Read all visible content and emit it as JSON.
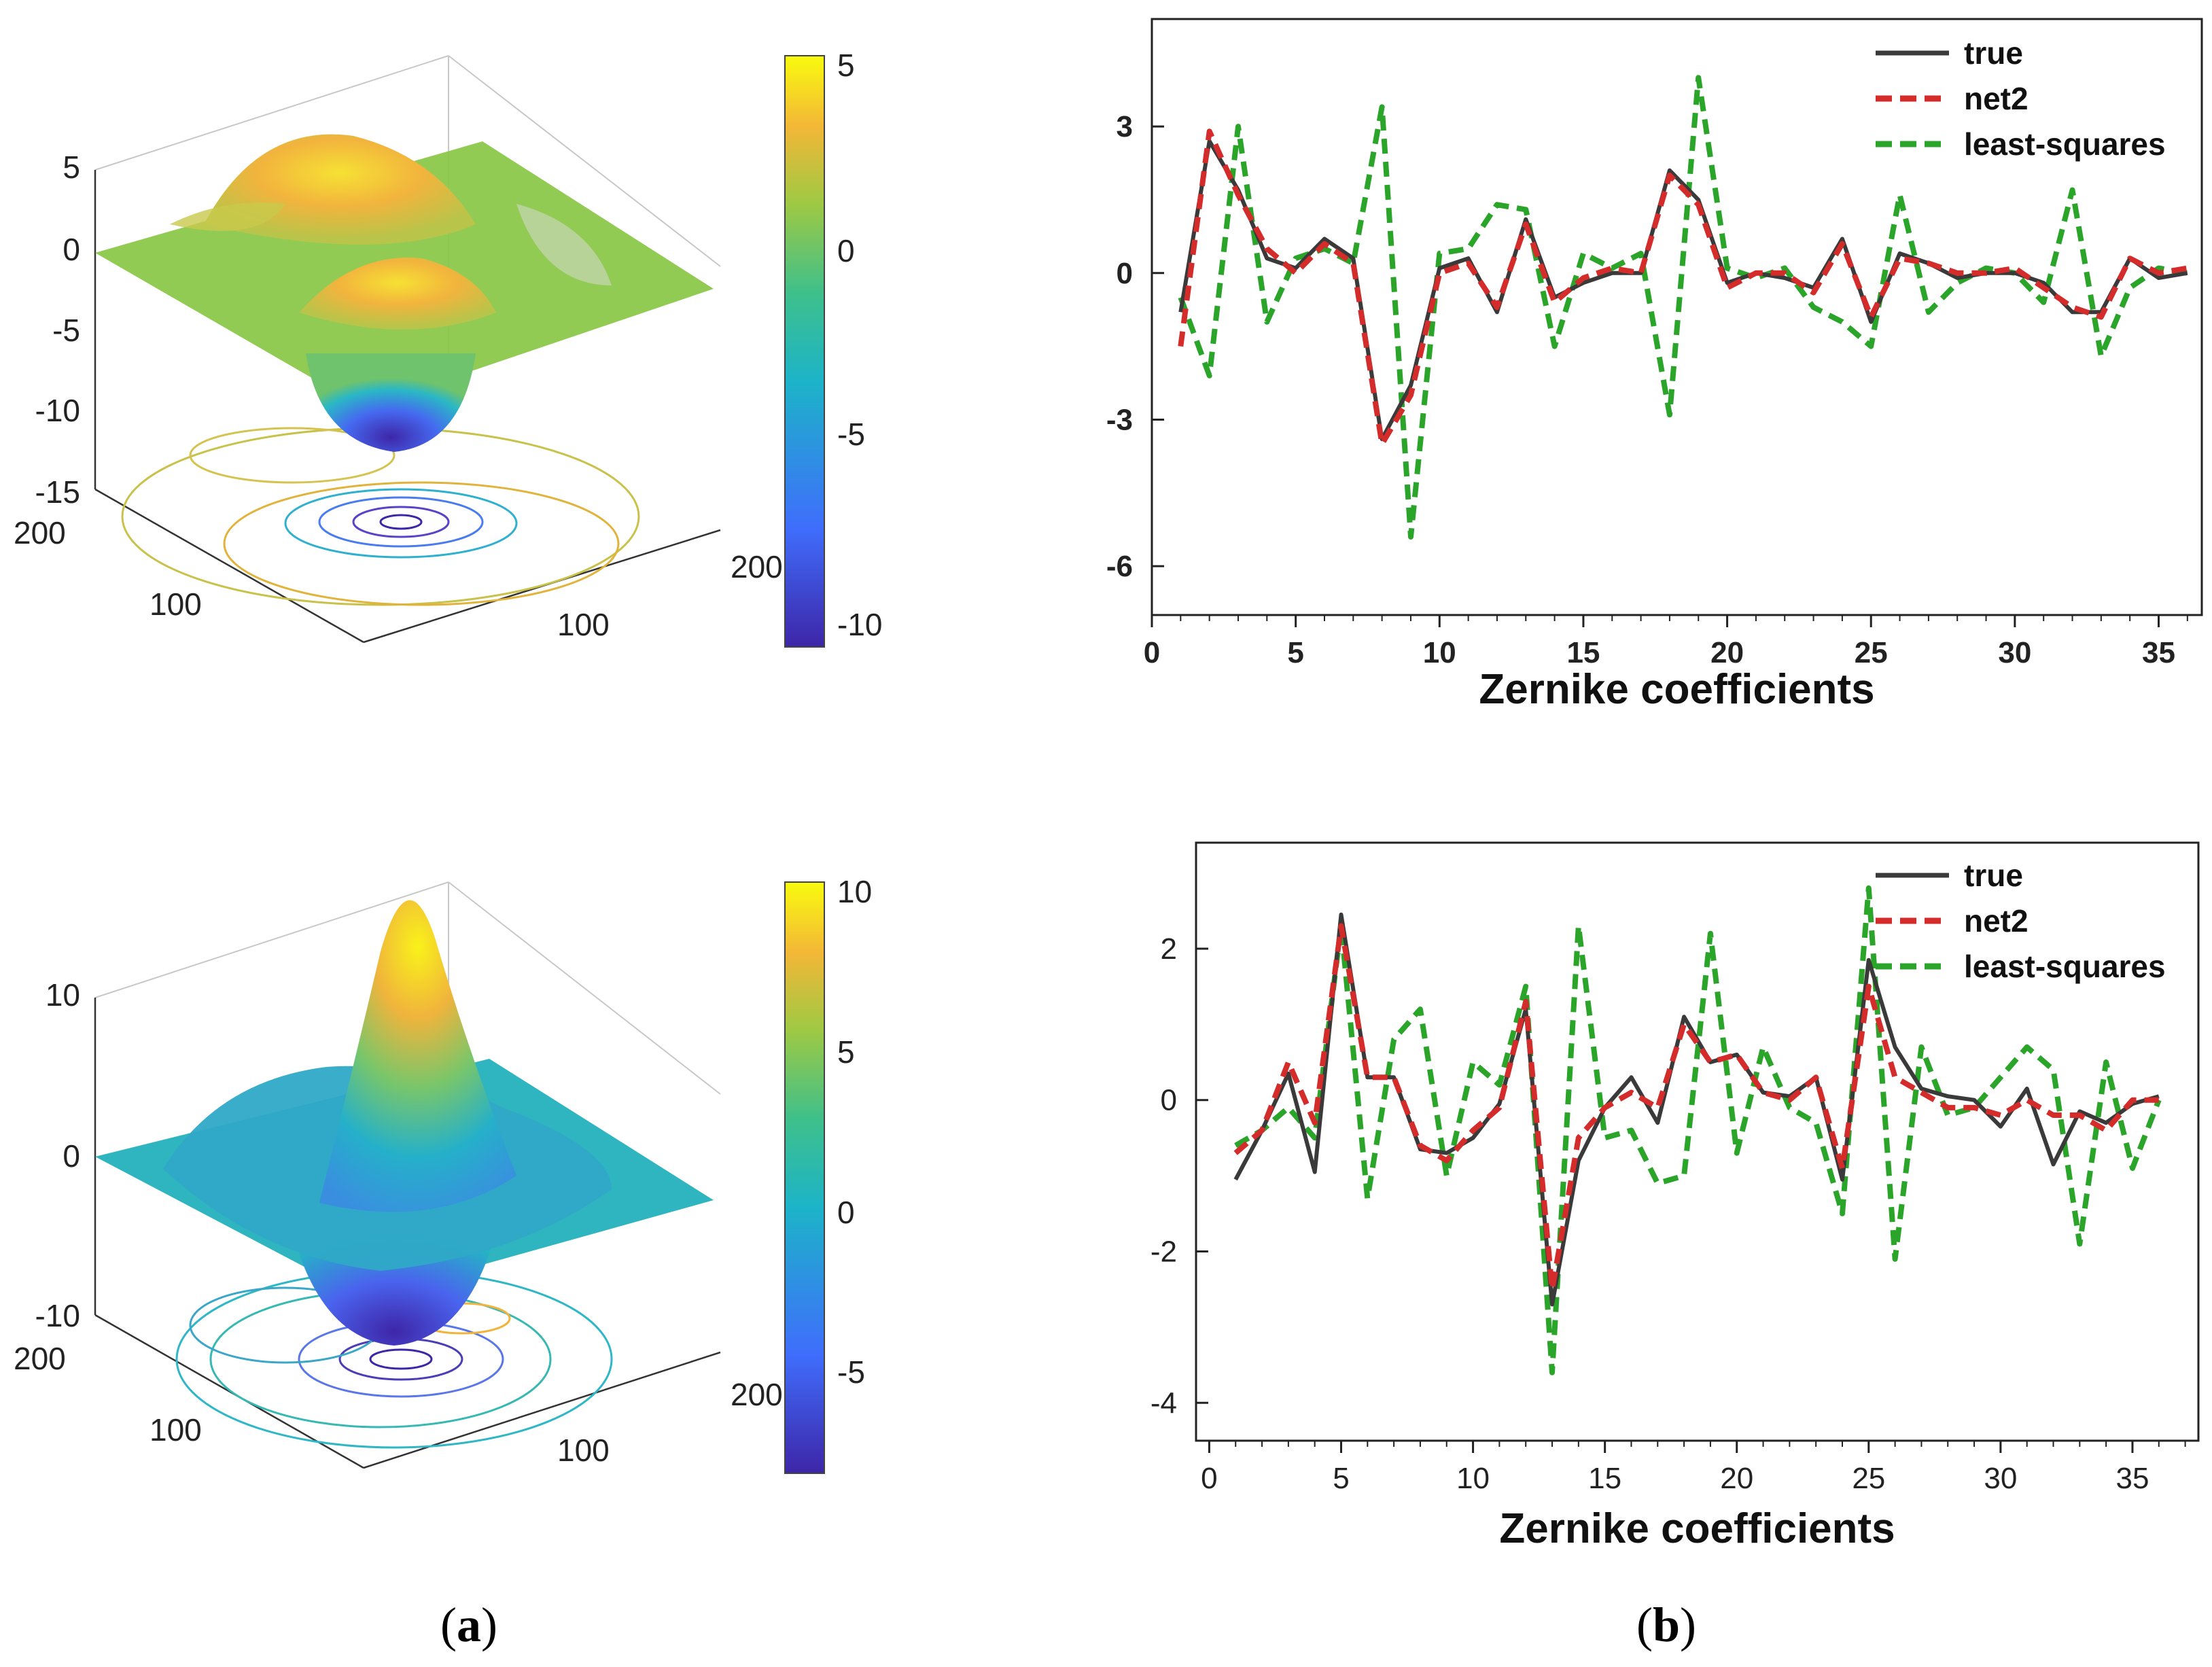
{
  "captions": {
    "a_open": "(",
    "a_letter": "a",
    "a_close": ")",
    "b_open": "(",
    "b_letter": "b",
    "b_close": ")"
  },
  "surface_plots": [
    {
      "z_ticks": [
        "5",
        "0",
        "-5",
        "-10",
        "-15"
      ],
      "y_axis_ticks": [
        "200",
        "100"
      ],
      "x_axis_ticks": [
        "100",
        "200"
      ],
      "colorbar_ticks": [
        "5",
        "0",
        "-5",
        "-10"
      ],
      "z_range": [
        -15,
        5
      ]
    },
    {
      "z_ticks": [
        "10",
        "0",
        "-10"
      ],
      "y_axis_ticks": [
        "200",
        "100"
      ],
      "x_axis_ticks": [
        "100",
        "200"
      ],
      "colorbar_ticks": [
        "10",
        "5",
        "0",
        "-5"
      ],
      "z_range": [
        -10,
        10
      ]
    }
  ],
  "chart_data": [
    {
      "type": "line",
      "xlabel": "Zernike coefficients",
      "xlim": [
        0,
        36.5
      ],
      "ylim": [
        -7,
        5.2
      ],
      "xticks": [
        0,
        5,
        10,
        15,
        20,
        25,
        30,
        35
      ],
      "yticks": [
        3,
        0,
        -3,
        -6
      ],
      "legend_position": "top-right",
      "x": [
        1,
        2,
        3,
        4,
        5,
        6,
        7,
        8,
        9,
        10,
        11,
        12,
        13,
        14,
        15,
        16,
        17,
        18,
        19,
        20,
        21,
        22,
        23,
        24,
        25,
        26,
        27,
        28,
        29,
        30,
        31,
        32,
        33,
        34,
        35,
        36
      ],
      "series": [
        {
          "name": "true",
          "color": "#3a3a3a",
          "dash": "solid",
          "values": [
            -0.8,
            2.7,
            1.7,
            0.3,
            0.1,
            0.7,
            0.3,
            -3.4,
            -2.3,
            0.1,
            0.3,
            -0.8,
            1.1,
            -0.5,
            -0.2,
            0,
            0,
            2.1,
            1.5,
            -0.2,
            0,
            -0.1,
            -0.3,
            0.7,
            -1.0,
            0.4,
            0.2,
            -0.1,
            0,
            0,
            -0.2,
            -0.8,
            -0.8,
            0.3,
            -0.1,
            0
          ]
        },
        {
          "name": "net2",
          "color": "#d42b2b",
          "dash": "dashed",
          "values": [
            -1.5,
            2.9,
            1.6,
            0.5,
            0,
            0.6,
            0.2,
            -3.5,
            -2.5,
            0,
            0.2,
            -0.7,
            1.0,
            -0.6,
            -0.1,
            0.1,
            0,
            2.0,
            1.4,
            -0.3,
            0,
            0,
            -0.4,
            0.6,
            -0.9,
            0.3,
            0.2,
            0,
            0,
            0.1,
            -0.3,
            -0.7,
            -0.9,
            0.3,
            0,
            0.1
          ]
        },
        {
          "name": "least-squares",
          "color": "#2aa52a",
          "dash": "dashed",
          "values": [
            -0.5,
            -2.1,
            3.0,
            -1.0,
            0.3,
            0.5,
            0.2,
            3.4,
            -5.4,
            0.4,
            0.5,
            1.4,
            1.3,
            -1.5,
            0.4,
            0.1,
            0.4,
            -2.9,
            4.0,
            0.1,
            -0.1,
            0.1,
            -0.7,
            -1.0,
            -1.5,
            1.6,
            -0.8,
            -0.2,
            0.1,
            0,
            -0.6,
            1.7,
            -1.7,
            -0.3,
            0.1,
            0
          ]
        }
      ]
    },
    {
      "type": "line",
      "xlabel": "Zernike coefficients",
      "xlim": [
        -0.5,
        37.5
      ],
      "ylim": [
        -4.5,
        3.4
      ],
      "xticks": [
        0,
        5,
        10,
        15,
        20,
        25,
        30,
        35
      ],
      "yticks": [
        2,
        0,
        -2,
        -4
      ],
      "legend_position": "top-right",
      "x": [
        1,
        2,
        3,
        4,
        5,
        6,
        7,
        8,
        9,
        10,
        11,
        12,
        13,
        14,
        15,
        16,
        17,
        18,
        19,
        20,
        21,
        22,
        23,
        24,
        25,
        26,
        27,
        28,
        29,
        30,
        31,
        32,
        33,
        34,
        35,
        36
      ],
      "series": [
        {
          "name": "true",
          "color": "#3a3a3a",
          "dash": "solid",
          "values": [
            -1.05,
            -0.4,
            0.35,
            -0.95,
            2.45,
            0.3,
            0.3,
            -0.65,
            -0.7,
            -0.5,
            -0.05,
            1.2,
            -2.7,
            -0.8,
            -0.1,
            0.3,
            -0.3,
            1.1,
            0.5,
            0.6,
            0.1,
            0.05,
            0.3,
            -1.05,
            1.85,
            0.7,
            0.15,
            0.05,
            0,
            -0.35,
            0.15,
            -0.85,
            -0.15,
            -0.3,
            -0.05,
            0.05
          ]
        },
        {
          "name": "net2",
          "color": "#d42b2b",
          "dash": "dashed",
          "values": [
            -0.7,
            -0.4,
            0.5,
            -0.3,
            2.3,
            0.3,
            0.3,
            -0.6,
            -0.8,
            -0.4,
            -0.1,
            1.3,
            -2.5,
            -0.5,
            -0.1,
            0.1,
            -0.1,
            1.0,
            0.5,
            0.6,
            0.1,
            0,
            0.3,
            -0.9,
            1.5,
            0.3,
            0.1,
            -0.1,
            -0.1,
            -0.2,
            0,
            -0.2,
            -0.2,
            -0.4,
            0,
            0
          ]
        },
        {
          "name": "least-squares",
          "color": "#2aa52a",
          "dash": "dashed",
          "values": [
            -0.6,
            -0.4,
            -0.1,
            -0.5,
            2.3,
            -1.3,
            0.8,
            1.2,
            -1.0,
            0.5,
            0.2,
            1.5,
            -3.6,
            2.3,
            -0.5,
            -0.4,
            -1.1,
            -1.0,
            2.2,
            -0.7,
            0.7,
            -0.1,
            -0.3,
            -1.5,
            2.8,
            -2.1,
            0.7,
            -0.2,
            -0.1,
            0.3,
            0.7,
            0.4,
            -1.9,
            0.5,
            -0.9,
            0
          ]
        }
      ]
    }
  ]
}
